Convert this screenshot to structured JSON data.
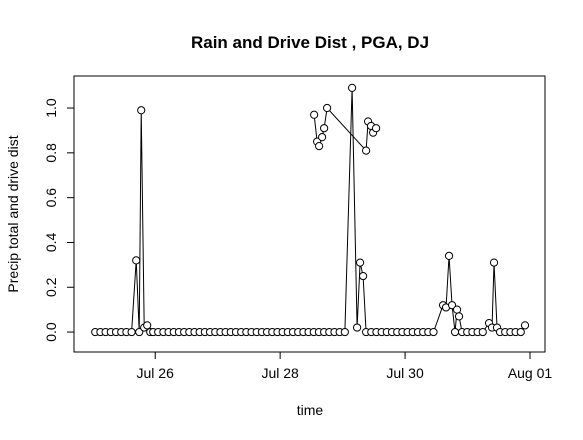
{
  "chart_data": {
    "type": "line",
    "title": "Rain and Drive Dist , PGA, DJ",
    "xlabel": "time",
    "ylabel": "Precip total and drive dist",
    "xlim": [
      24.7,
      32.24
    ],
    "ylim": [
      -0.089,
      1.143
    ],
    "xticks": [
      {
        "value": 26,
        "label": "Jul 26"
      },
      {
        "value": 28,
        "label": "Jul 28"
      },
      {
        "value": 30,
        "label": "Jul 30"
      },
      {
        "value": 32,
        "label": "Aug 01"
      }
    ],
    "yticks": [
      {
        "value": 0,
        "label": "0.0"
      },
      0.2,
      0.4,
      0.6,
      0.8,
      {
        "value": 1,
        "label": "1.0"
      }
    ],
    "grid": false,
    "series": [
      {
        "color": "#000000",
        "x": [
          25.04,
          25.123,
          25.206,
          25.29,
          25.373,
          25.456,
          25.539,
          25.622,
          25.696,
          25.744,
          25.776,
          25.824,
          25.872,
          25.92,
          25.968,
          26.048,
          26.131,
          26.214,
          26.297,
          26.38,
          26.463,
          26.546,
          26.629,
          26.712,
          26.795,
          26.878,
          26.961,
          27.044,
          27.127,
          27.21,
          27.293,
          27.376,
          27.459,
          27.542,
          27.625,
          27.708,
          27.791,
          27.874,
          27.957,
          28.04,
          28.123,
          28.206,
          28.289,
          28.372,
          28.455,
          28.538,
          28.621,
          28.704,
          28.787,
          28.87,
          28.953,
          29.036,
          29.152,
          29.232,
          29.28,
          29.328,
          29.376,
          29.459,
          29.542,
          29.625,
          29.708,
          29.791,
          29.874,
          29.957,
          30.04,
          30.123,
          30.206,
          30.289,
          30.372,
          30.455,
          30.608,
          30.656,
          30.704,
          30.752,
          30.8,
          30.832,
          30.864,
          30.912,
          30.995,
          31.078,
          31.161,
          31.244,
          31.344,
          31.392,
          31.424,
          31.472,
          31.52,
          31.603,
          31.686,
          31.769,
          31.852,
          31.92
        ],
        "values": [
          0,
          0,
          0,
          0,
          0,
          0,
          0,
          0,
          0.32,
          0,
          0.99,
          0.02,
          0.03,
          0,
          0,
          0,
          0,
          0,
          0,
          0,
          0,
          0,
          0,
          0,
          0,
          0,
          0,
          0,
          0,
          0,
          0,
          0,
          0,
          0,
          0,
          0,
          0,
          0,
          0,
          0,
          0,
          0,
          0,
          0,
          0,
          0,
          0,
          0,
          0,
          0,
          0,
          0,
          1.09,
          0.02,
          0.31,
          0.25,
          0,
          0,
          0,
          0,
          0,
          0,
          0,
          0,
          0,
          0,
          0,
          0,
          0,
          0,
          0.12,
          0.11,
          0.34,
          0.12,
          0,
          0.1,
          0.07,
          0,
          0,
          0,
          0,
          0,
          0.04,
          0.02,
          0.31,
          0.02,
          0,
          0,
          0,
          0,
          0,
          0.03
        ]
      },
      {
        "color": "#000000",
        "x": [
          28.544,
          28.592,
          28.624,
          28.672,
          28.704,
          28.752,
          29.376,
          29.408,
          29.456,
          29.488,
          29.536
        ],
        "values": [
          0.97,
          0.85,
          0.83,
          0.87,
          0.91,
          1.0,
          0.81,
          0.94,
          0.92,
          0.89,
          0.91
        ]
      }
    ]
  }
}
